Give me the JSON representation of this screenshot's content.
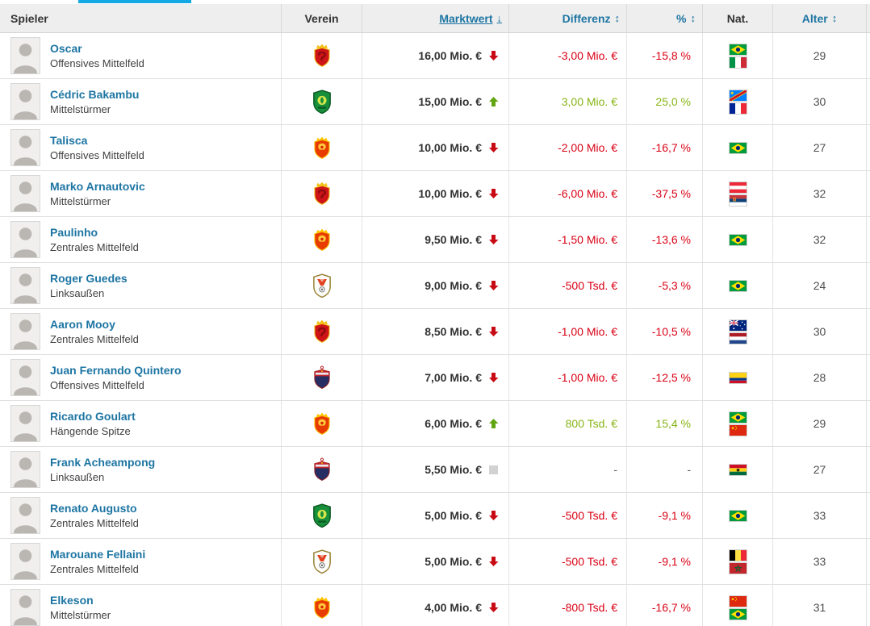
{
  "colors": {
    "accent_blue": "#1d75a3",
    "negative_red": "#d90014",
    "arrow_red": "#c80a14",
    "positive_green": "#87b414",
    "arrow_green": "#62a513",
    "unchanged_gray": "#d2d2d2",
    "header_bg": "#eeeeee",
    "tab_indicator_blue": "#14a9e2"
  },
  "table": {
    "columns": [
      {
        "key": "spieler",
        "label": "Spieler",
        "align": "left",
        "sortable": false,
        "sorted": false,
        "sort_icon": ""
      },
      {
        "key": "verein",
        "label": "Verein",
        "align": "center",
        "sortable": false,
        "sorted": false,
        "sort_icon": ""
      },
      {
        "key": "marktwert",
        "label": "Marktwert",
        "align": "right",
        "sortable": true,
        "sorted": true,
        "sort_icon": "↓"
      },
      {
        "key": "differenz",
        "label": "Differenz",
        "align": "right",
        "sortable": true,
        "sorted": false,
        "sort_icon": "↕"
      },
      {
        "key": "prozent",
        "label": "%",
        "align": "right",
        "sortable": true,
        "sorted": false,
        "sort_icon": "↕"
      },
      {
        "key": "nat",
        "label": "Nat.",
        "align": "center",
        "sortable": false,
        "sorted": false,
        "sort_icon": ""
      },
      {
        "key": "alter",
        "label": "Alter",
        "align": "center",
        "sortable": true,
        "sorted": false,
        "sort_icon": "↕"
      }
    ],
    "rows": [
      {
        "name": "Oscar",
        "position": "Offensives Mittelfeld",
        "club": "shanghai-port",
        "market_value": "16,00 Mio. €",
        "trend": "down",
        "difference": "-3,00 Mio. €",
        "percent": "-15,8 %",
        "flags": [
          "brazil",
          "italy"
        ],
        "age": "29"
      },
      {
        "name": "Cédric Bakambu",
        "position": "Mittelstürmer",
        "club": "beijing-guoan",
        "market_value": "15,00 Mio. €",
        "trend": "up",
        "difference": "3,00 Mio. €",
        "percent": "25,0 %",
        "flags": [
          "dr-congo",
          "france"
        ],
        "age": "30"
      },
      {
        "name": "Talisca",
        "position": "Offensives Mittelfeld",
        "club": "guangzhou",
        "market_value": "10,00 Mio. €",
        "trend": "down",
        "difference": "-2,00 Mio. €",
        "percent": "-16,7 %",
        "flags": [
          "brazil"
        ],
        "age": "27"
      },
      {
        "name": "Marko Arnautovic",
        "position": "Mittelstürmer",
        "club": "shanghai-port",
        "market_value": "10,00 Mio. €",
        "trend": "down",
        "difference": "-6,00 Mio. €",
        "percent": "-37,5 %",
        "flags": [
          "austria",
          "serbia"
        ],
        "age": "32"
      },
      {
        "name": "Paulinho",
        "position": "Zentrales Mittelfeld",
        "club": "guangzhou",
        "market_value": "9,50 Mio. €",
        "trend": "down",
        "difference": "-1,50 Mio. €",
        "percent": "-13,6 %",
        "flags": [
          "brazil"
        ],
        "age": "32"
      },
      {
        "name": "Roger Guedes",
        "position": "Linksaußen",
        "club": "shandong-taishan",
        "market_value": "9,00 Mio. €",
        "trend": "down",
        "difference": "-500 Tsd. €",
        "percent": "-5,3 %",
        "flags": [
          "brazil"
        ],
        "age": "24"
      },
      {
        "name": "Aaron Mooy",
        "position": "Zentrales Mittelfeld",
        "club": "shanghai-port",
        "market_value": "8,50 Mio. €",
        "trend": "down",
        "difference": "-1,00 Mio. €",
        "percent": "-10,5 %",
        "flags": [
          "australia",
          "netherlands"
        ],
        "age": "30"
      },
      {
        "name": "Juan Fernando Quintero",
        "position": "Offensives Mittelfeld",
        "club": "shenzhen",
        "market_value": "7,00 Mio. €",
        "trend": "down",
        "difference": "-1,00 Mio. €",
        "percent": "-12,5 %",
        "flags": [
          "colombia"
        ],
        "age": "28"
      },
      {
        "name": "Ricardo Goulart",
        "position": "Hängende Spitze",
        "club": "guangzhou",
        "market_value": "6,00 Mio. €",
        "trend": "up",
        "difference": "800 Tsd. €",
        "percent": "15,4 %",
        "flags": [
          "brazil",
          "china"
        ],
        "age": "29"
      },
      {
        "name": "Frank Acheampong",
        "position": "Linksaußen",
        "club": "shenzhen",
        "market_value": "5,50 Mio. €",
        "trend": "same",
        "difference": "-",
        "percent": "-",
        "flags": [
          "ghana"
        ],
        "age": "27"
      },
      {
        "name": "Renato Augusto",
        "position": "Zentrales Mittelfeld",
        "club": "beijing-guoan",
        "market_value": "5,00 Mio. €",
        "trend": "down",
        "difference": "-500 Tsd. €",
        "percent": "-9,1 %",
        "flags": [
          "brazil"
        ],
        "age": "33"
      },
      {
        "name": "Marouane Fellaini",
        "position": "Zentrales Mittelfeld",
        "club": "shandong-taishan",
        "market_value": "5,00 Mio. €",
        "trend": "down",
        "difference": "-500 Tsd. €",
        "percent": "-9,1 %",
        "flags": [
          "belgium",
          "morocco"
        ],
        "age": "33"
      },
      {
        "name": "Elkeson",
        "position": "Mittelstürmer",
        "club": "guangzhou",
        "market_value": "4,00 Mio. €",
        "trend": "down",
        "difference": "-800 Tsd. €",
        "percent": "-16,7 %",
        "flags": [
          "china",
          "brazil"
        ],
        "age": "31"
      }
    ]
  }
}
